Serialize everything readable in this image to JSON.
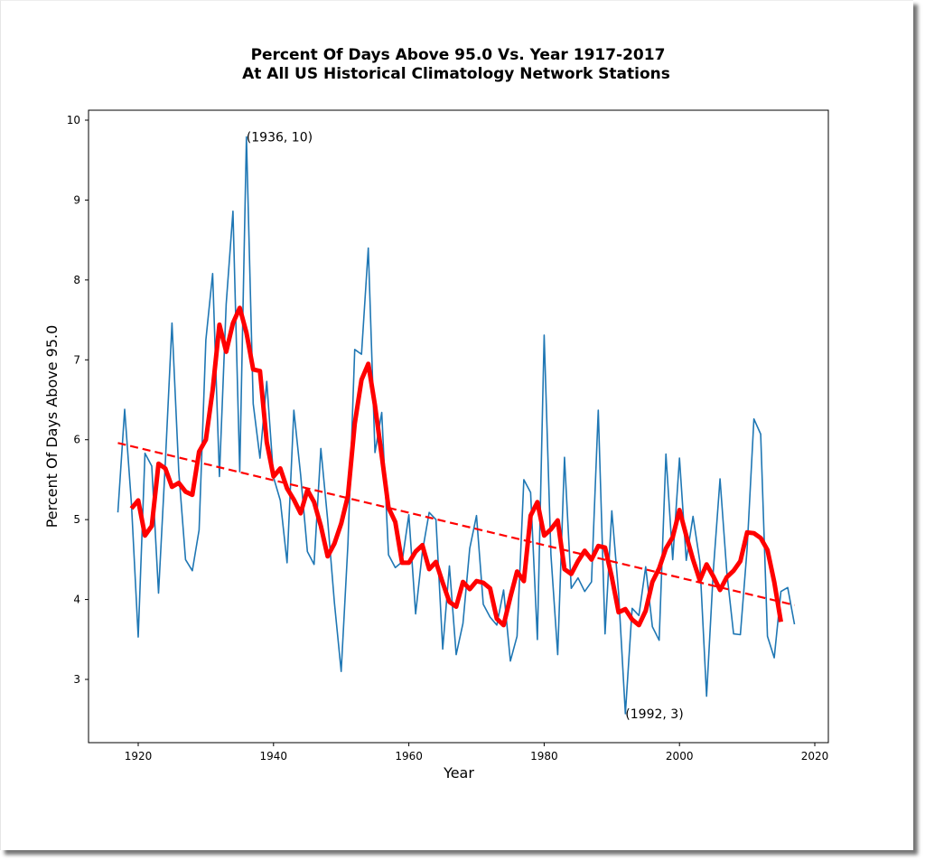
{
  "chart_data": {
    "type": "line",
    "title": [
      "Percent Of Days Above 95.0 Vs. Year 1917-2017",
      "At All US Historical Climatology Network Stations"
    ],
    "xlabel": "Year",
    "ylabel": "Percent Of Days Above 95.0",
    "xlim": [
      1912,
      2021.5
    ],
    "ylim": [
      2.2,
      10.1
    ],
    "xticks": [
      1920,
      1940,
      1960,
      1980,
      2000,
      2020
    ],
    "yticks": [
      3,
      4,
      5,
      6,
      7,
      8,
      9,
      10
    ],
    "grid": false,
    "legend": "none",
    "series": [
      {
        "name": "Annual percent",
        "color": "#1f77b4",
        "style": "solid",
        "x": [
          1917,
          1918,
          1919,
          1920,
          1921,
          1922,
          1923,
          1924,
          1925,
          1926,
          1927,
          1928,
          1929,
          1930,
          1931,
          1932,
          1933,
          1934,
          1935,
          1936,
          1937,
          1938,
          1939,
          1940,
          1941,
          1942,
          1943,
          1944,
          1945,
          1946,
          1947,
          1948,
          1949,
          1950,
          1951,
          1952,
          1953,
          1954,
          1955,
          1956,
          1957,
          1958,
          1959,
          1960,
          1961,
          1962,
          1963,
          1964,
          1965,
          1966,
          1967,
          1968,
          1969,
          1970,
          1971,
          1972,
          1973,
          1974,
          1975,
          1976,
          1977,
          1978,
          1979,
          1980,
          1981,
          1982,
          1983,
          1984,
          1985,
          1986,
          1987,
          1988,
          1989,
          1990,
          1991,
          1992,
          1993,
          1994,
          1995,
          1996,
          1997,
          1998,
          1999,
          2000,
          2001,
          2002,
          2003,
          2004,
          2005,
          2006,
          2007,
          2008,
          2009,
          2010,
          2011,
          2012,
          2013,
          2014,
          2015,
          2016,
          2017
        ],
        "y": [
          5.09,
          6.38,
          5.2,
          3.53,
          5.83,
          5.67,
          4.08,
          5.71,
          7.46,
          5.6,
          4.5,
          4.36,
          4.87,
          7.25,
          8.08,
          5.54,
          7.7,
          8.86,
          5.6,
          9.79,
          6.45,
          5.77,
          6.73,
          5.53,
          5.24,
          4.46,
          6.37,
          5.56,
          4.6,
          4.44,
          5.89,
          5.0,
          3.96,
          3.1,
          4.7,
          7.13,
          7.07,
          8.4,
          5.84,
          6.34,
          4.56,
          4.4,
          4.47,
          5.06,
          3.82,
          4.6,
          5.09,
          5.0,
          3.38,
          4.42,
          3.31,
          3.7,
          4.64,
          5.05,
          3.94,
          3.78,
          3.68,
          4.12,
          3.23,
          3.54,
          5.5,
          5.34,
          3.5,
          7.31,
          4.56,
          3.31,
          5.78,
          4.14,
          4.27,
          4.1,
          4.22,
          6.37,
          3.57,
          5.11,
          4.08,
          2.57,
          3.89,
          3.8,
          4.41,
          3.66,
          3.49,
          5.82,
          4.5,
          5.77,
          4.49,
          5.04,
          4.48,
          2.79,
          4.35,
          5.51,
          4.34,
          3.57,
          3.56,
          4.64,
          6.26,
          6.07,
          3.54,
          3.27,
          4.1,
          4.15,
          3.69
        ]
      },
      {
        "name": "Moving average",
        "color": "#ff0000",
        "style": "thick",
        "x": [
          1919,
          1920,
          1921,
          1922,
          1923,
          1924,
          1925,
          1926,
          1927,
          1928,
          1929,
          1930,
          1931,
          1932,
          1933,
          1934,
          1935,
          1936,
          1937,
          1938,
          1939,
          1940,
          1941,
          1942,
          1943,
          1944,
          1945,
          1946,
          1947,
          1948,
          1949,
          1950,
          1951,
          1952,
          1953,
          1954,
          1955,
          1956,
          1957,
          1958,
          1959,
          1960,
          1961,
          1962,
          1963,
          1964,
          1965,
          1966,
          1967,
          1968,
          1969,
          1970,
          1971,
          1972,
          1973,
          1974,
          1975,
          1976,
          1977,
          1978,
          1979,
          1980,
          1981,
          1982,
          1983,
          1984,
          1985,
          1986,
          1987,
          1988,
          1989,
          1990,
          1991,
          1992,
          1993,
          1994,
          1995,
          1996,
          1997,
          1998,
          1999,
          2000,
          2001,
          2002,
          2003,
          2004,
          2005,
          2006,
          2007,
          2008,
          2009,
          2010,
          2011,
          2012,
          2013,
          2014,
          2015
        ],
        "y": [
          5.14,
          5.24,
          4.8,
          4.92,
          5.7,
          5.64,
          5.41,
          5.46,
          5.35,
          5.31,
          5.85,
          6.0,
          6.62,
          7.44,
          7.1,
          7.46,
          7.65,
          7.34,
          6.88,
          6.86,
          5.97,
          5.54,
          5.64,
          5.39,
          5.25,
          5.08,
          5.37,
          5.22,
          4.92,
          4.54,
          4.7,
          4.95,
          5.3,
          6.2,
          6.75,
          6.95,
          6.43,
          5.8,
          5.15,
          4.97,
          4.46,
          4.46,
          4.6,
          4.68,
          4.38,
          4.47,
          4.21,
          3.97,
          3.91,
          4.22,
          4.13,
          4.23,
          4.21,
          4.14,
          3.76,
          3.68,
          4.03,
          4.35,
          4.23,
          5.05,
          5.22,
          4.8,
          4.88,
          4.99,
          4.38,
          4.32,
          4.48,
          4.61,
          4.5,
          4.67,
          4.65,
          4.28,
          3.84,
          3.88,
          3.75,
          3.68,
          3.86,
          4.22,
          4.39,
          4.64,
          4.78,
          5.12,
          4.8,
          4.5,
          4.24,
          4.44,
          4.29,
          4.12,
          4.28,
          4.36,
          4.48,
          4.84,
          4.83,
          4.77,
          4.62,
          4.22,
          3.72
        ]
      },
      {
        "name": "Linear trend",
        "color": "#ff0000",
        "style": "dashed",
        "x": [
          1917,
          2017
        ],
        "y": [
          5.96,
          3.93
        ]
      }
    ],
    "annotations": [
      {
        "text": "(1936, 10)",
        "x": 1936,
        "y": 9.79
      },
      {
        "text": "(1992, 3)",
        "x": 1992,
        "y": 2.57
      }
    ]
  }
}
